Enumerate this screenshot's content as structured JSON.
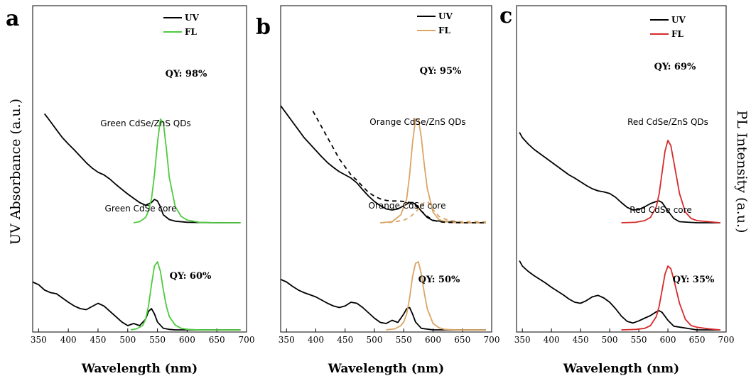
{
  "y_axis_left_label": "UV Absorbance (a.u.)",
  "y_axis_right_label": "PL Intensity (a.u.)",
  "chart_data": [
    {
      "type": "line",
      "panel_label": "a",
      "xlabel": "Wavelength (nm)",
      "xlim": [
        340,
        700
      ],
      "xticks": [
        "350",
        "400",
        "450",
        "500",
        "550",
        "600",
        "650",
        "700"
      ],
      "fl_color": "#4ecb3f",
      "legend": [
        {
          "name": "UV",
          "color": "#000000"
        },
        {
          "name": "FL",
          "color": "#4ecb3f"
        }
      ],
      "annotations": {
        "top_qy": "QY: 98%",
        "top_name": "Green CdSe/ZnS QDs",
        "bottom_name": "Green CdSe core",
        "bottom_qy": "QY: 60%"
      },
      "series": [
        {
          "role": "uv",
          "group": "top",
          "x": [
            360,
            370,
            380,
            390,
            400,
            410,
            420,
            430,
            440,
            450,
            460,
            470,
            480,
            490,
            500,
            510,
            520,
            530,
            540,
            545,
            550,
            555,
            560,
            570,
            580,
            600,
            650,
            690
          ],
          "y": [
            2.05,
            1.9,
            1.75,
            1.6,
            1.48,
            1.37,
            1.25,
            1.13,
            1.03,
            0.95,
            0.9,
            0.82,
            0.72,
            0.63,
            0.54,
            0.46,
            0.38,
            0.33,
            0.38,
            0.44,
            0.41,
            0.3,
            0.15,
            0.06,
            0.03,
            0.01,
            0.0,
            0.0
          ]
        },
        {
          "role": "fl",
          "group": "top",
          "x": [
            510,
            520,
            530,
            535,
            540,
            545,
            550,
            555,
            560,
            565,
            570,
            580,
            590,
            600,
            620,
            650,
            690
          ],
          "y": [
            0.0,
            0.02,
            0.1,
            0.22,
            0.45,
            0.9,
            1.5,
            1.95,
            1.88,
            1.4,
            0.85,
            0.3,
            0.12,
            0.05,
            0.01,
            0.0,
            0.0
          ]
        },
        {
          "role": "uv",
          "group": "bottom",
          "x": [
            340,
            350,
            360,
            370,
            380,
            390,
            400,
            410,
            420,
            430,
            440,
            450,
            460,
            470,
            480,
            490,
            500,
            510,
            520,
            530,
            535,
            540,
            545,
            550,
            560,
            570,
            580,
            600,
            650,
            690
          ],
          "y": [
            0.9,
            0.85,
            0.75,
            0.7,
            0.68,
            0.6,
            0.52,
            0.45,
            0.4,
            0.38,
            0.44,
            0.5,
            0.45,
            0.35,
            0.25,
            0.15,
            0.08,
            0.12,
            0.08,
            0.2,
            0.35,
            0.4,
            0.3,
            0.15,
            0.03,
            0.01,
            0.0,
            0.0,
            0.0,
            0.0
          ]
        },
        {
          "role": "fl",
          "group": "bottom",
          "x": [
            505,
            515,
            525,
            530,
            535,
            540,
            545,
            550,
            555,
            560,
            565,
            570,
            580,
            590,
            600,
            620,
            650,
            690
          ],
          "y": [
            0.0,
            0.02,
            0.08,
            0.2,
            0.45,
            0.85,
            1.2,
            1.28,
            1.1,
            0.75,
            0.45,
            0.25,
            0.09,
            0.03,
            0.01,
            0.0,
            0.0,
            0.0
          ]
        }
      ]
    },
    {
      "type": "line",
      "panel_label": "b",
      "xlabel": "Wavelength (nm)",
      "xlim": [
        340,
        700
      ],
      "xticks": [
        "350",
        "400",
        "450",
        "500",
        "550",
        "600",
        "650",
        "700"
      ],
      "fl_color": "#daa565",
      "legend": [
        {
          "name": "UV",
          "color": "#000000"
        },
        {
          "name": "FL",
          "color": "#daa565"
        }
      ],
      "annotations": {
        "top_qy": "QY: 95%",
        "top_name": "Orange CdSe/ZnS QDs",
        "bottom_name": "Orange CdSe core",
        "bottom_qy": "QY: 50%"
      },
      "series": [
        {
          "role": "uv",
          "group": "top",
          "x": [
            340,
            350,
            360,
            370,
            380,
            390,
            400,
            410,
            420,
            430,
            440,
            450,
            460,
            470,
            480,
            490,
            500,
            510,
            520,
            530,
            540,
            550,
            560,
            565,
            570,
            580,
            590,
            600,
            650,
            690
          ],
          "y": [
            2.2,
            2.05,
            1.9,
            1.75,
            1.6,
            1.48,
            1.36,
            1.24,
            1.13,
            1.04,
            0.96,
            0.9,
            0.84,
            0.75,
            0.62,
            0.5,
            0.4,
            0.32,
            0.26,
            0.24,
            0.26,
            0.32,
            0.38,
            0.38,
            0.35,
            0.22,
            0.1,
            0.04,
            0.0,
            0.0
          ]
        },
        {
          "role": "fl",
          "group": "top",
          "x": [
            510,
            530,
            545,
            555,
            560,
            565,
            570,
            575,
            580,
            585,
            590,
            600,
            610,
            620,
            640,
            690
          ],
          "y": [
            0.0,
            0.02,
            0.15,
            0.45,
            0.9,
            1.5,
            1.95,
            1.95,
            1.6,
            1.1,
            0.65,
            0.2,
            0.06,
            0.02,
            0.0,
            0.0
          ]
        },
        {
          "role": "uv_dashed",
          "group": "top",
          "x": [
            395,
            400,
            410,
            420,
            430,
            440,
            450,
            460,
            470,
            480,
            490,
            500,
            510,
            520,
            530,
            540,
            550,
            560,
            570,
            580,
            590,
            600,
            610,
            620,
            650,
            690
          ],
          "y": [
            2.1,
            2.0,
            1.8,
            1.6,
            1.4,
            1.2,
            1.05,
            0.9,
            0.8,
            0.68,
            0.57,
            0.5,
            0.45,
            0.42,
            0.41,
            0.41,
            0.4,
            0.38,
            0.32,
            0.22,
            0.12,
            0.05,
            0.02,
            0.01,
            0.0,
            0.0
          ]
        },
        {
          "role": "fl_dashed",
          "group": "top",
          "x": [
            510,
            530,
            550,
            560,
            570,
            580,
            585,
            590,
            595,
            600,
            610,
            620,
            630,
            650,
            690
          ],
          "y": [
            0.0,
            0.01,
            0.05,
            0.1,
            0.2,
            0.32,
            0.38,
            0.4,
            0.35,
            0.25,
            0.12,
            0.07,
            0.04,
            0.02,
            0.02
          ]
        },
        {
          "role": "uv",
          "group": "bottom",
          "x": [
            340,
            350,
            360,
            370,
            380,
            390,
            400,
            410,
            420,
            430,
            440,
            450,
            460,
            470,
            480,
            490,
            500,
            510,
            520,
            530,
            540,
            550,
            555,
            560,
            565,
            570,
            580,
            600,
            650,
            690
          ],
          "y": [
            0.95,
            0.9,
            0.82,
            0.75,
            0.7,
            0.66,
            0.62,
            0.56,
            0.5,
            0.45,
            0.42,
            0.45,
            0.52,
            0.5,
            0.42,
            0.32,
            0.22,
            0.14,
            0.12,
            0.18,
            0.14,
            0.3,
            0.4,
            0.42,
            0.3,
            0.15,
            0.03,
            0.0,
            0.0,
            0.0
          ]
        },
        {
          "role": "fl",
          "group": "bottom",
          "x": [
            520,
            535,
            545,
            550,
            555,
            560,
            565,
            570,
            575,
            580,
            585,
            590,
            600,
            610,
            620,
            640,
            690
          ],
          "y": [
            0.0,
            0.02,
            0.08,
            0.15,
            0.3,
            0.6,
            1.0,
            1.25,
            1.28,
            1.05,
            0.7,
            0.4,
            0.12,
            0.04,
            0.01,
            0.0,
            0.0
          ]
        }
      ]
    },
    {
      "type": "line",
      "panel_label": "c",
      "xlabel": "Wavelength (nm)",
      "xlim": [
        340,
        700
      ],
      "xticks": [
        "350",
        "400",
        "450",
        "500",
        "550",
        "600",
        "650",
        "700"
      ],
      "fl_color": "#d62a2a",
      "legend": [
        {
          "name": "UV",
          "color": "#000000"
        },
        {
          "name": "FL",
          "color": "#d62a2a"
        }
      ],
      "annotations": {
        "top_qy": "QY: 69%",
        "top_name": "Red CdSe/ZnS QDs",
        "bottom_name": "Red CdSe core",
        "bottom_qy": "QY: 35%"
      },
      "series": [
        {
          "role": "uv",
          "group": "top",
          "x": [
            345,
            350,
            360,
            370,
            380,
            390,
            400,
            410,
            420,
            430,
            440,
            450,
            460,
            470,
            480,
            490,
            500,
            510,
            520,
            530,
            540,
            550,
            560,
            570,
            580,
            585,
            590,
            600,
            610,
            620,
            650,
            690
          ],
          "y": [
            1.7,
            1.6,
            1.48,
            1.38,
            1.3,
            1.22,
            1.14,
            1.06,
            0.98,
            0.9,
            0.84,
            0.77,
            0.7,
            0.64,
            0.6,
            0.58,
            0.55,
            0.48,
            0.38,
            0.29,
            0.24,
            0.25,
            0.3,
            0.36,
            0.4,
            0.41,
            0.38,
            0.22,
            0.08,
            0.02,
            0.0,
            0.0
          ]
        },
        {
          "role": "fl",
          "group": "top",
          "x": [
            520,
            545,
            560,
            570,
            580,
            585,
            590,
            595,
            600,
            605,
            610,
            620,
            630,
            640,
            650,
            670,
            690
          ],
          "y": [
            0.0,
            0.01,
            0.04,
            0.1,
            0.3,
            0.55,
            0.95,
            1.35,
            1.55,
            1.45,
            1.15,
            0.55,
            0.2,
            0.08,
            0.04,
            0.02,
            0.0
          ]
        },
        {
          "role": "uv",
          "group": "bottom",
          "x": [
            345,
            350,
            360,
            370,
            380,
            390,
            400,
            410,
            420,
            430,
            440,
            450,
            460,
            470,
            480,
            490,
            500,
            510,
            520,
            530,
            540,
            550,
            560,
            570,
            580,
            585,
            590,
            600,
            610,
            650,
            690
          ],
          "y": [
            1.3,
            1.2,
            1.1,
            1.02,
            0.95,
            0.88,
            0.8,
            0.73,
            0.66,
            0.58,
            0.52,
            0.5,
            0.55,
            0.62,
            0.65,
            0.6,
            0.52,
            0.4,
            0.26,
            0.16,
            0.13,
            0.17,
            0.22,
            0.27,
            0.34,
            0.36,
            0.33,
            0.18,
            0.07,
            0.0,
            0.0
          ]
        },
        {
          "role": "fl",
          "group": "bottom",
          "x": [
            520,
            545,
            560,
            570,
            580,
            585,
            590,
            595,
            600,
            605,
            610,
            620,
            630,
            640,
            650,
            670,
            690
          ],
          "y": [
            0.0,
            0.01,
            0.03,
            0.08,
            0.25,
            0.45,
            0.75,
            1.05,
            1.2,
            1.15,
            0.95,
            0.5,
            0.2,
            0.08,
            0.05,
            0.02,
            0.0
          ]
        }
      ]
    }
  ]
}
